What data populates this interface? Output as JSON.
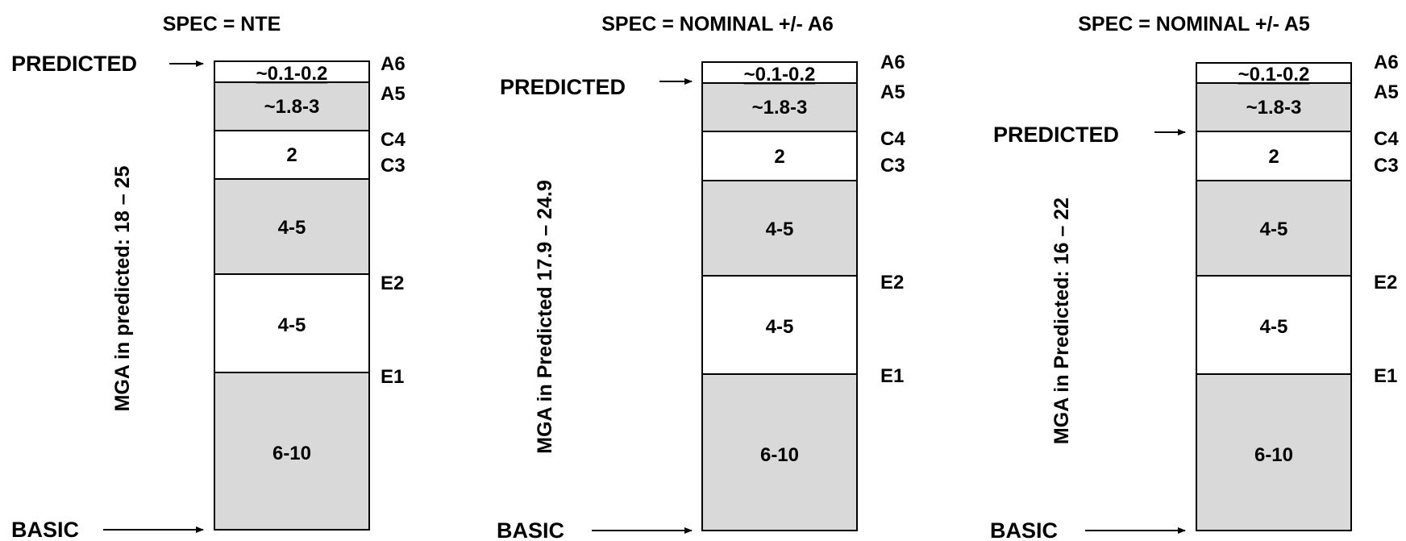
{
  "panels": [
    {
      "title": "SPEC = NTE",
      "vertical_label": "MGA  in predicted: 18 – 25",
      "predicted_label": "PREDICTED",
      "basic_label": "BASIC",
      "segments": [
        {
          "label": "~0.1-0.2",
          "fill": "#ffffff",
          "code": "A6"
        },
        {
          "label": "~1.8-3",
          "fill": "#d9d9d9",
          "code": "A5"
        },
        {
          "label": "2",
          "fill": "#ffffff",
          "code": "C4"
        },
        {
          "label": "4-5",
          "fill": "#d9d9d9",
          "code": "C3"
        },
        {
          "label": "4-5",
          "fill": "#ffffff",
          "code": "E2"
        },
        {
          "label": "6-10",
          "fill": "#d9d9d9",
          "code": "E1"
        }
      ]
    },
    {
      "title": "SPEC = NOMINAL +/- A6",
      "vertical_label": "MGA  in Predicted 17.9 – 24.9",
      "predicted_label": "PREDICTED",
      "basic_label": "BASIC",
      "segments": [
        {
          "label": "~0.1-0.2",
          "fill": "#ffffff",
          "code": "A6"
        },
        {
          "label": "~1.8-3",
          "fill": "#d9d9d9",
          "code": "A5"
        },
        {
          "label": "2",
          "fill": "#ffffff",
          "code": "C4"
        },
        {
          "label": "4-5",
          "fill": "#d9d9d9",
          "code": "C3"
        },
        {
          "label": "4-5",
          "fill": "#ffffff",
          "code": "E2"
        },
        {
          "label": "6-10",
          "fill": "#d9d9d9",
          "code": "E1"
        }
      ]
    },
    {
      "title": "SPEC = NOMINAL +/- A5",
      "vertical_label": "MGA  in Predicted: 16 – 22",
      "predicted_label": "PREDICTED",
      "basic_label": "BASIC",
      "segments": [
        {
          "label": "~0.1-0.2",
          "fill": "#ffffff",
          "code": "A6"
        },
        {
          "label": "~1.8-3",
          "fill": "#d9d9d9",
          "code": "A5"
        },
        {
          "label": "2",
          "fill": "#ffffff",
          "code": "C4"
        },
        {
          "label": "4-5",
          "fill": "#d9d9d9",
          "code": "C3"
        },
        {
          "label": "4-5",
          "fill": "#ffffff",
          "code": "E2"
        },
        {
          "label": "6-10",
          "fill": "#d9d9d9",
          "code": "E1"
        }
      ]
    }
  ]
}
